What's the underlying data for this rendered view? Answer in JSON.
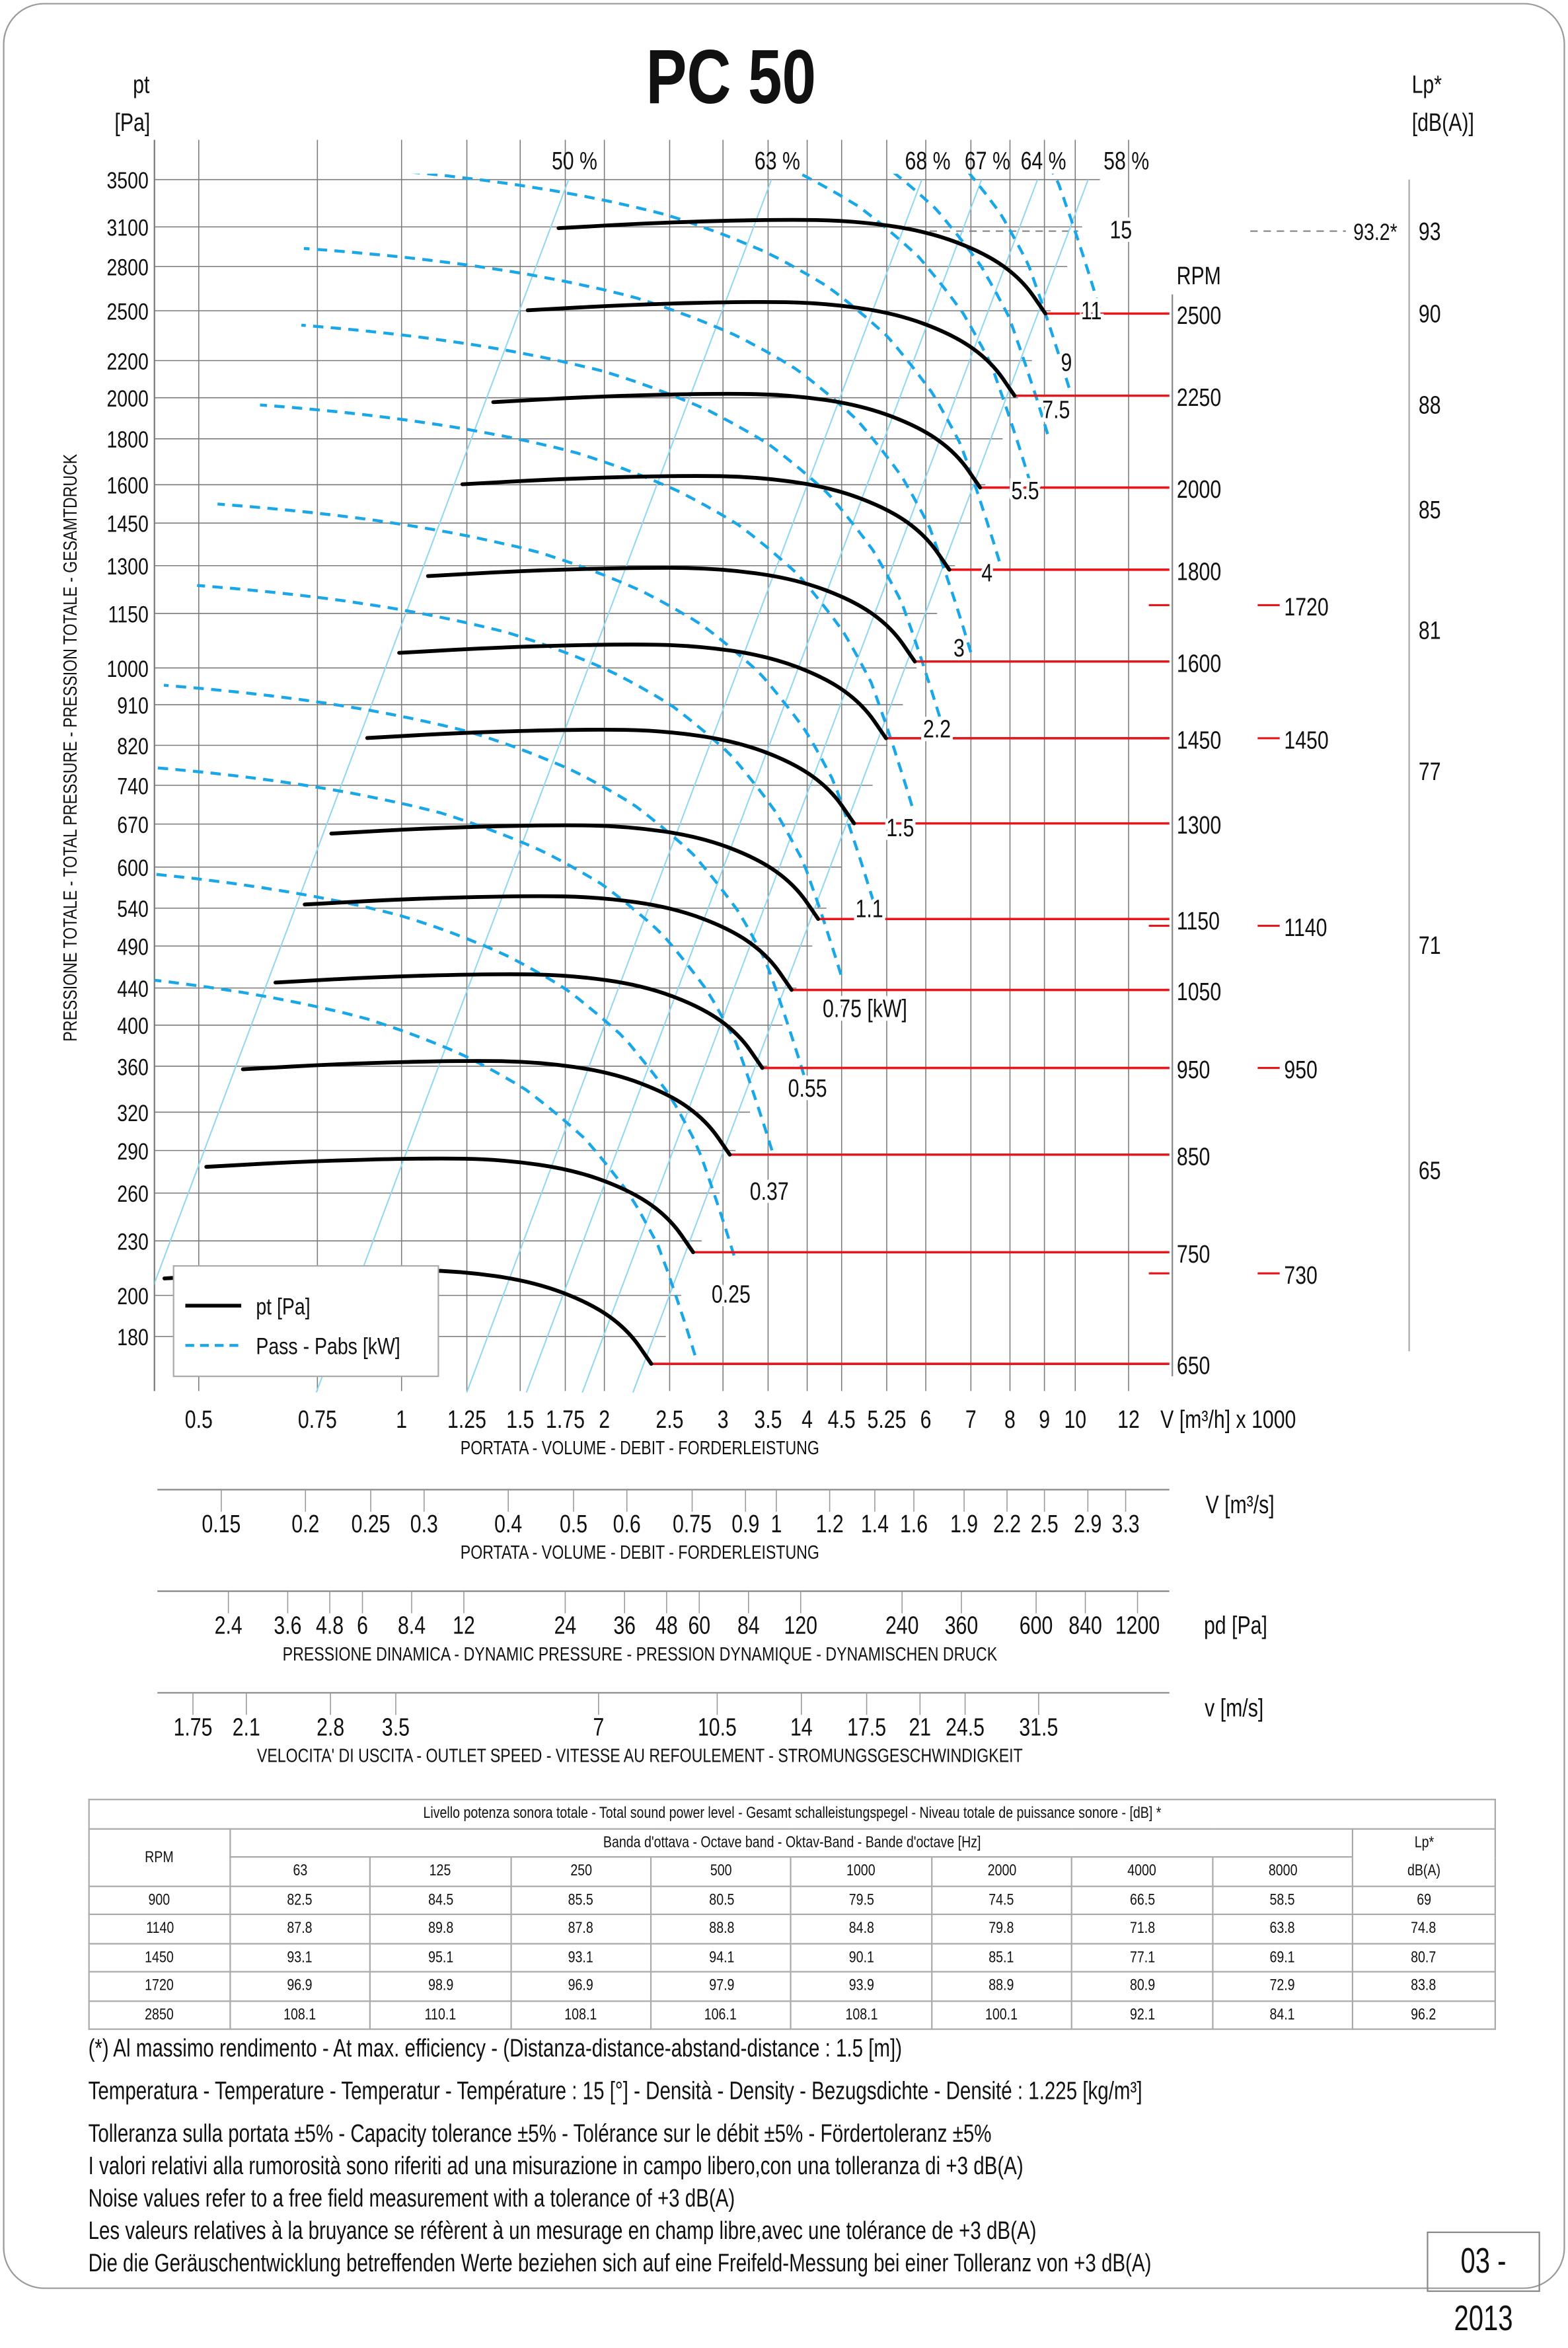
{
  "chart_data": {
    "type": "line",
    "title": "PC 50",
    "y_axis": {
      "unit_line1": "pt",
      "unit_line2": "[Pa]",
      "title": "PRESSIONE TOTALE - TOTAL PRESSURE - PRESSION TOTALE - GESAMTDRUCK",
      "scale": "log",
      "range": [
        165,
        3500
      ],
      "ticks": [
        3500,
        3100,
        2800,
        2500,
        2200,
        2000,
        1800,
        1600,
        1450,
        1300,
        1150,
        1000,
        910,
        820,
        740,
        670,
        600,
        540,
        490,
        440,
        400,
        360,
        320,
        290,
        260,
        230,
        200,
        180
      ]
    },
    "x_axis": {
      "unit": "V [m³/h] x 1000",
      "title": "PORTATA - VOLUME - DEBIT - FORDERLEISTUNG",
      "scale": "log",
      "range": [
        0.42,
        14
      ],
      "ticks": [
        0.5,
        0.75,
        1,
        1.25,
        1.5,
        1.75,
        2,
        2.5,
        3,
        3.5,
        4,
        4.5,
        5.25,
        6,
        7,
        8,
        9,
        10,
        12
      ]
    },
    "secondary_axes": [
      {
        "unit": "V  [m³/s]",
        "title": "PORTATA - VOLUME - DEBIT - FORDERLEISTUNG",
        "ticks": [
          0.15,
          0.2,
          0.25,
          0.3,
          0.4,
          0.5,
          0.6,
          0.75,
          0.9,
          1,
          1.2,
          1.4,
          1.6,
          1.9,
          2.2,
          2.5,
          2.9,
          3.3
        ]
      },
      {
        "unit": "pd  [Pa]",
        "title": "PRESSIONE DINAMICA - DYNAMIC PRESSURE - PRESSION DYNAMIQUE - DYNAMISCHEN DRUCK",
        "ticks": [
          2.4,
          3.6,
          4.8,
          6,
          8.4,
          12,
          24,
          36,
          48,
          60,
          84,
          120,
          240,
          360,
          600,
          840,
          1200
        ]
      },
      {
        "unit": "v  [m/s]",
        "title": "VELOCITA' DI USCITA - OUTLET SPEED - VITESSE AU REFOULEMENT - STROMUNGSGESCHWINDIGKEIT",
        "ticks": [
          1.75,
          2.1,
          2.8,
          3.5,
          7,
          10.5,
          14,
          17.5,
          21,
          24.5,
          31.5
        ]
      }
    ],
    "rpm_header": "RPM",
    "rpm_curves": {
      "rpm": [
        2500,
        2250,
        2000,
        1800,
        1600,
        1450,
        1300,
        1150,
        1050,
        950,
        850,
        750,
        650
      ],
      "reference_rpm": 2500,
      "reference_points": {
        "V": [
          1.71,
          2.44,
          3.64,
          4.68,
          6.02,
          7.36,
          8.34,
          9.03
        ],
        "pt": [
          3090,
          3136,
          3160,
          3150,
          3067,
          2897,
          2707,
          2482
        ]
      },
      "scaling": "fan laws (V ~ n, pt ~ n²)"
    },
    "efficiency_lines": [
      {
        "label": "50 %",
        "V_at_3500Pa": 1.77
      },
      {
        "label": "63 %",
        "V_at_3500Pa": 3.54
      },
      {
        "label": "68 %",
        "V_at_3500Pa": 5.92
      },
      {
        "label": "67 %",
        "V_at_3500Pa": 7.26
      },
      {
        "label": "64 %",
        "V_at_3500Pa": 8.79
      },
      {
        "label": "58 %",
        "V_at_3500Pa": 10.45
      }
    ],
    "power_lines": [
      {
        "label": "15",
        "kW": 15
      },
      {
        "label": "11",
        "kW": 11
      },
      {
        "label": "9",
        "kW": 9
      },
      {
        "label": "7.5",
        "kW": 7.5
      },
      {
        "label": "5.5",
        "kW": 5.5
      },
      {
        "label": "4",
        "kW": 4
      },
      {
        "label": "3",
        "kW": 3
      },
      {
        "label": "2.2",
        "kW": 2.2
      },
      {
        "label": "1.5",
        "kW": 1.5
      },
      {
        "label": "1.1",
        "kW": 1.1
      },
      {
        "label": "0.75   [kW]",
        "kW": 0.75
      },
      {
        "label": "0.55",
        "kW": 0.55
      },
      {
        "label": "0.37",
        "kW": 0.37
      },
      {
        "label": "0.25",
        "kW": 0.25
      }
    ],
    "sound_rpm_marks": [
      1720,
      1450,
      1140,
      950,
      730
    ],
    "lp_axis": {
      "unit_line1": "Lp*",
      "unit_line2": "[dB(A)]",
      "ticks": [
        93,
        90,
        88,
        85,
        81,
        77,
        71,
        65
      ]
    },
    "max_efficiency_lp": "93.2*",
    "legend": [
      {
        "label": "pt [Pa]",
        "style": "solid",
        "color": "#000000"
      },
      {
        "label": "Pass - Pabs [kW]",
        "style": "dashed",
        "color": "#1aa7e8"
      }
    ],
    "colors": {
      "curve": "#000000",
      "power": "#1aa7e8",
      "efficiency": "#8fd6f2",
      "rpm_line": "#e8151b",
      "grid": "#7a7a7a"
    }
  },
  "sound_table": {
    "title": "Livello potenza sonora totale - Total sound power level - Gesamt schalleistungspegel - Niveau totale de puissance sonore - [dB]  *",
    "rpm_header": "RPM",
    "band_header": "Banda d'ottava - Octave band - Oktav-Band - Bande d'octave [Hz]",
    "lp_header1": "Lp*",
    "lp_header2": "dB(A)",
    "frequencies": [
      "63",
      "125",
      "250",
      "500",
      "1000",
      "2000",
      "4000",
      "8000"
    ],
    "rows": [
      {
        "rpm": "900",
        "values": [
          "82.5",
          "84.5",
          "85.5",
          "80.5",
          "79.5",
          "74.5",
          "66.5",
          "58.5"
        ],
        "lp": "69"
      },
      {
        "rpm": "1140",
        "values": [
          "87.8",
          "89.8",
          "87.8",
          "88.8",
          "84.8",
          "79.8",
          "71.8",
          "63.8"
        ],
        "lp": "74.8"
      },
      {
        "rpm": "1450",
        "values": [
          "93.1",
          "95.1",
          "93.1",
          "94.1",
          "90.1",
          "85.1",
          "77.1",
          "69.1"
        ],
        "lp": "80.7"
      },
      {
        "rpm": "1720",
        "values": [
          "96.9",
          "98.9",
          "96.9",
          "97.9",
          "93.9",
          "88.9",
          "80.9",
          "72.9"
        ],
        "lp": "83.8"
      },
      {
        "rpm": "2850",
        "values": [
          "108.1",
          "110.1",
          "108.1",
          "106.1",
          "108.1",
          "100.1",
          "92.1",
          "84.1"
        ],
        "lp": "96.2"
      }
    ]
  },
  "notes": [
    "(*) Al massimo rendimento - At max. efficiency - (Distanza-distance-abstand-distance : 1.5 [m])",
    "Temperatura - Temperature - Temperatur - Température : 15 [°]  -  Densità - Density - Bezugsdichte - Densité : 1.225 [kg/m³]",
    "Tolleranza sulla portata  ±5% - Capacity tolerance ±5% - Tolérance sur le débit ±5% - Fördertoleranz ±5%",
    "I valori relativi alla rumorosità sono riferiti ad una misurazione in campo libero,con una tolleranza di +3 dB(A)",
    "Noise values refer to a free field measurement with a tolerance of +3 dB(A)",
    "Les valeurs relatives à la bruyance se réfèrent à un mesurage en champ libre,avec une tolérance de +3 dB(A)",
    "Die die Geräuschentwicklung betreffenden Werte beziehen sich auf eine Freifeld-Messung bei einer  Tolleranz von +3 dB(A)"
  ],
  "date": "03 - 2013"
}
